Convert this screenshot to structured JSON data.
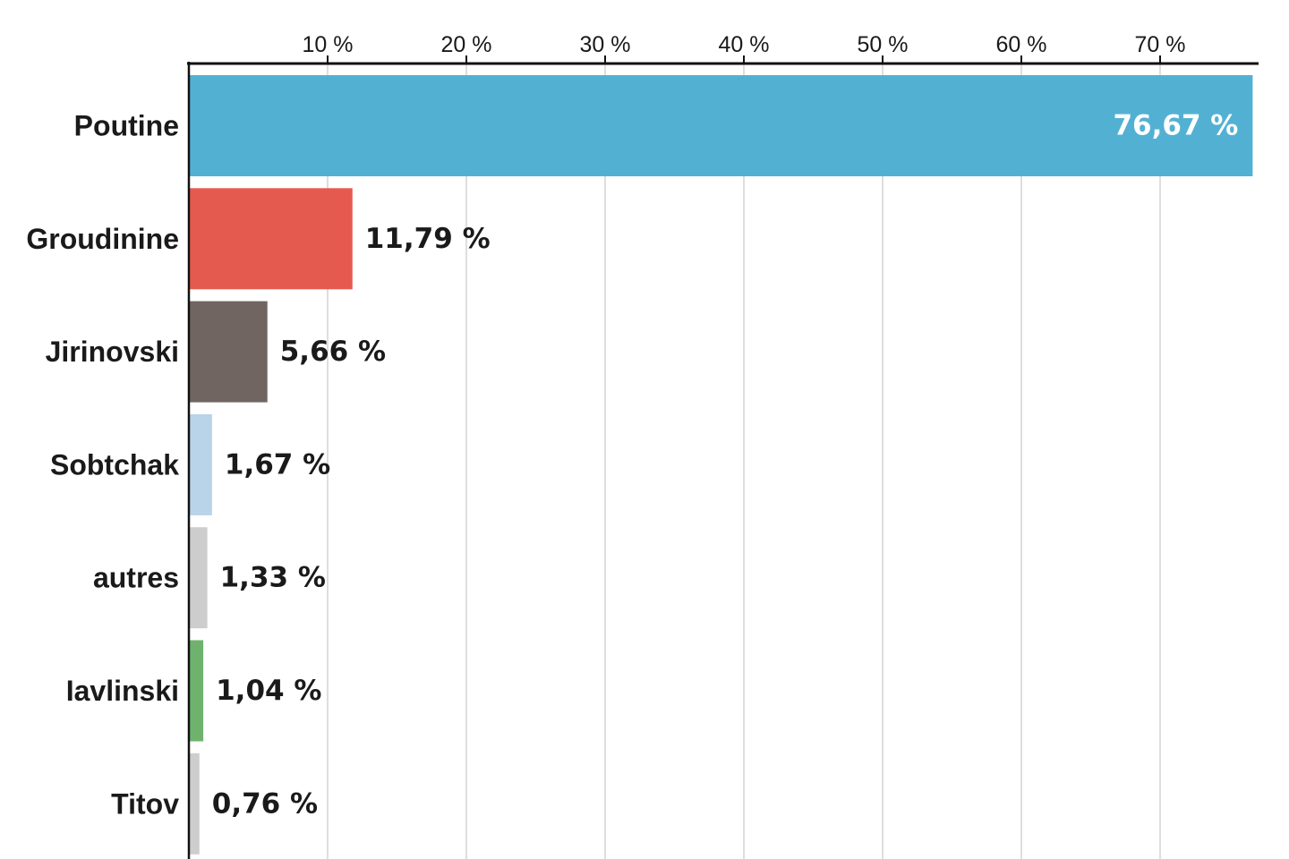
{
  "chart_data": {
    "type": "bar",
    "orientation": "horizontal",
    "xlim": [
      0,
      77
    ],
    "grid": true,
    "x_ticks": [
      {
        "value": 10,
        "label": "10 %"
      },
      {
        "value": 20,
        "label": "20 %"
      },
      {
        "value": 30,
        "label": "30 %"
      },
      {
        "value": 40,
        "label": "40 %"
      },
      {
        "value": 50,
        "label": "50 %"
      },
      {
        "value": 60,
        "label": "60 %"
      },
      {
        "value": 70,
        "label": "70 %"
      }
    ],
    "bars": [
      {
        "category": "Poutine",
        "value": 76.67,
        "label": "76,67 %",
        "color": "#52b1d3"
      },
      {
        "category": "Groudinine",
        "value": 11.79,
        "label": "11,79 %",
        "color": "#e55a4f"
      },
      {
        "category": "Jirinovski",
        "value": 5.66,
        "label": "5,66 %",
        "color": "#706561"
      },
      {
        "category": "Sobtchak",
        "value": 1.67,
        "label": "1,67 %",
        "color": "#b9d3e8"
      },
      {
        "category": "autres",
        "value": 1.33,
        "label": "1,33 %",
        "color": "#cdcdcd"
      },
      {
        "category": "Iavlinski",
        "value": 1.04,
        "label": "1,04 %",
        "color": "#6fb26d"
      },
      {
        "category": "Titov",
        "value": 0.76,
        "label": "0,76 %",
        "color": "#cdcdcd"
      }
    ]
  }
}
